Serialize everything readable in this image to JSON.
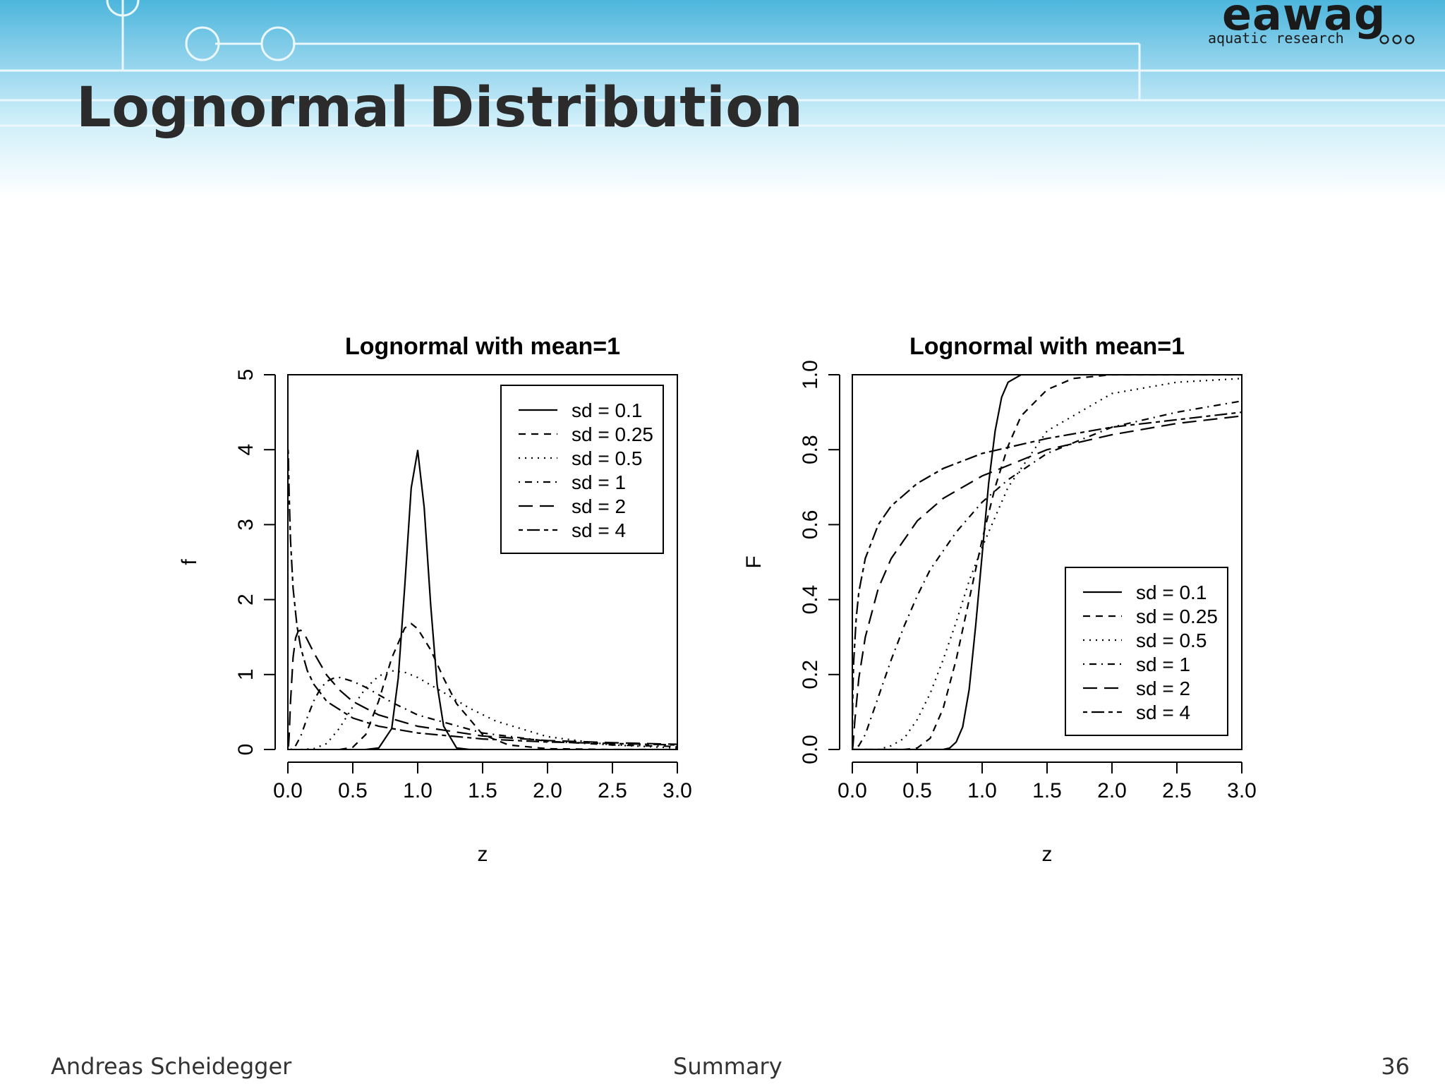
{
  "slide": {
    "title": "Lognormal Distribution",
    "logo": {
      "name": "eawag",
      "tagline": "aquatic research"
    },
    "footer": {
      "author": "Andreas Scheidegger",
      "section": "Summary",
      "page": "36"
    }
  },
  "colors": {
    "header_blue": "#4db6dc",
    "ink": "#000000",
    "title": "#2b2b2b"
  },
  "chart_data": [
    {
      "type": "line",
      "title": "Lognormal with mean=1",
      "xlabel": "z",
      "ylabel": "f",
      "xlim": [
        0,
        3
      ],
      "ylim": [
        0,
        5
      ],
      "xticks": [
        "0.0",
        "0.5",
        "1.0",
        "1.5",
        "2.0",
        "2.5",
        "3.0"
      ],
      "yticks": [
        "0",
        "1",
        "2",
        "3",
        "4",
        "5"
      ],
      "grid": false,
      "legend_position": "top-right",
      "series": [
        {
          "name": "sd = 0.1",
          "dash": "solid",
          "x": [
            0.6,
            0.7,
            0.8,
            0.85,
            0.9,
            0.95,
            1.0,
            1.05,
            1.1,
            1.15,
            1.2,
            1.3,
            1.4,
            1.5
          ],
          "y": [
            0.0,
            0.02,
            0.28,
            0.95,
            2.17,
            3.49,
            3.99,
            3.23,
            1.93,
            0.86,
            0.31,
            0.02,
            0.0,
            0.0
          ]
        },
        {
          "name": "sd = 0.25",
          "dash": "dashed",
          "x": [
            0.4,
            0.5,
            0.6,
            0.7,
            0.8,
            0.9,
            0.95,
            1.0,
            1.1,
            1.2,
            1.3,
            1.5,
            1.7,
            2.0,
            2.5,
            3.0
          ],
          "y": [
            0.0,
            0.03,
            0.2,
            0.65,
            1.22,
            1.62,
            1.68,
            1.61,
            1.33,
            0.95,
            0.61,
            0.2,
            0.06,
            0.01,
            0.0,
            0.0
          ]
        },
        {
          "name": "sd = 0.5",
          "dash": "dotted",
          "x": [
            0.1,
            0.2,
            0.3,
            0.4,
            0.5,
            0.6,
            0.7,
            0.8,
            0.9,
            1.0,
            1.2,
            1.4,
            1.6,
            2.0,
            2.5,
            3.0
          ],
          "y": [
            0.0,
            0.01,
            0.08,
            0.29,
            0.57,
            0.82,
            0.98,
            1.05,
            1.03,
            0.96,
            0.76,
            0.55,
            0.38,
            0.17,
            0.06,
            0.02
          ]
        },
        {
          "name": "sd = 1",
          "dash": "dotdash",
          "x": [
            0.02,
            0.05,
            0.1,
            0.15,
            0.2,
            0.25,
            0.3,
            0.35,
            0.4,
            0.5,
            0.6,
            0.8,
            1.0,
            1.5,
            2.0,
            2.5,
            3.0
          ],
          "y": [
            0.0,
            0.02,
            0.18,
            0.43,
            0.65,
            0.81,
            0.91,
            0.95,
            0.96,
            0.91,
            0.83,
            0.63,
            0.46,
            0.22,
            0.11,
            0.06,
            0.04
          ]
        },
        {
          "name": "sd = 2",
          "dash": "longdash",
          "x": [
            0.005,
            0.01,
            0.02,
            0.04,
            0.06,
            0.08,
            0.1,
            0.13,
            0.16,
            0.2,
            0.3,
            0.4,
            0.5,
            0.7,
            1.0,
            1.5,
            2.0,
            2.5,
            3.0
          ],
          "y": [
            0.04,
            0.18,
            0.63,
            1.23,
            1.49,
            1.58,
            1.59,
            1.53,
            1.43,
            1.29,
            0.99,
            0.79,
            0.64,
            0.46,
            0.31,
            0.18,
            0.12,
            0.09,
            0.07
          ]
        },
        {
          "name": "sd = 4",
          "dash": "twodash",
          "x": [
            0.0015,
            0.003,
            0.005,
            0.01,
            0.02,
            0.04,
            0.07,
            0.1,
            0.15,
            0.2,
            0.3,
            0.5,
            0.7,
            1.0,
            1.5,
            2.0,
            2.5,
            3.0
          ],
          "y": [
            4.0,
            3.95,
            3.8,
            3.4,
            2.8,
            2.15,
            1.65,
            1.35,
            1.05,
            0.87,
            0.64,
            0.42,
            0.31,
            0.22,
            0.14,
            0.1,
            0.08,
            0.06
          ]
        }
      ]
    },
    {
      "type": "line",
      "title": "Lognormal with mean=1",
      "xlabel": "z",
      "ylabel": "F",
      "xlim": [
        0,
        3
      ],
      "ylim": [
        0,
        1
      ],
      "xticks": [
        "0.0",
        "0.5",
        "1.0",
        "1.5",
        "2.0",
        "2.5",
        "3.0"
      ],
      "yticks": [
        "0.0",
        "0.2",
        "0.4",
        "0.6",
        "0.8",
        "1.0"
      ],
      "grid": false,
      "legend_position": "bottom-right",
      "series": [
        {
          "name": "sd = 0.1",
          "dash": "solid",
          "x": [
            0,
            0.6,
            0.7,
            0.75,
            0.8,
            0.85,
            0.9,
            0.95,
            1.0,
            1.05,
            1.1,
            1.15,
            1.2,
            1.3,
            3.0
          ],
          "y": [
            0,
            0,
            0.0,
            0.004,
            0.02,
            0.06,
            0.16,
            0.33,
            0.52,
            0.71,
            0.85,
            0.94,
            0.98,
            1.0,
            1.0
          ]
        },
        {
          "name": "sd = 0.25",
          "dash": "dashed",
          "x": [
            0,
            0.4,
            0.5,
            0.6,
            0.7,
            0.8,
            0.9,
            1.0,
            1.1,
            1.2,
            1.3,
            1.5,
            1.7,
            2.0,
            3.0
          ],
          "y": [
            0,
            0.0,
            0.004,
            0.03,
            0.11,
            0.24,
            0.4,
            0.56,
            0.7,
            0.81,
            0.89,
            0.96,
            0.99,
            1.0,
            1.0
          ]
        },
        {
          "name": "sd = 0.5",
          "dash": "dotted",
          "x": [
            0,
            0.2,
            0.3,
            0.4,
            0.5,
            0.6,
            0.7,
            0.8,
            0.9,
            1.0,
            1.2,
            1.5,
            2.0,
            2.5,
            3.0
          ],
          "y": [
            0,
            0.0,
            0.01,
            0.03,
            0.08,
            0.15,
            0.24,
            0.34,
            0.45,
            0.54,
            0.7,
            0.85,
            0.95,
            0.98,
            0.99
          ]
        },
        {
          "name": "sd = 1",
          "dash": "dotdash",
          "x": [
            0,
            0.05,
            0.1,
            0.2,
            0.3,
            0.4,
            0.5,
            0.6,
            0.8,
            1.0,
            1.2,
            1.5,
            2.0,
            2.5,
            3.0
          ],
          "y": [
            0,
            0.01,
            0.04,
            0.14,
            0.24,
            0.33,
            0.41,
            0.48,
            0.58,
            0.66,
            0.72,
            0.79,
            0.86,
            0.9,
            0.93
          ]
        },
        {
          "name": "sd = 2",
          "dash": "longdash",
          "x": [
            0,
            0.005,
            0.02,
            0.05,
            0.1,
            0.2,
            0.3,
            0.5,
            0.7,
            1.0,
            1.5,
            2.0,
            2.5,
            3.0
          ],
          "y": [
            0,
            0.01,
            0.08,
            0.19,
            0.3,
            0.43,
            0.51,
            0.61,
            0.67,
            0.73,
            0.8,
            0.84,
            0.87,
            0.89
          ]
        },
        {
          "name": "sd = 4",
          "dash": "twodash",
          "x": [
            0,
            0.001,
            0.005,
            0.01,
            0.03,
            0.05,
            0.1,
            0.2,
            0.3,
            0.5,
            0.7,
            1.0,
            1.5,
            2.0,
            2.5,
            3.0
          ],
          "y": [
            0,
            0.08,
            0.17,
            0.23,
            0.35,
            0.42,
            0.51,
            0.6,
            0.65,
            0.71,
            0.75,
            0.79,
            0.83,
            0.86,
            0.88,
            0.9
          ]
        }
      ]
    }
  ]
}
